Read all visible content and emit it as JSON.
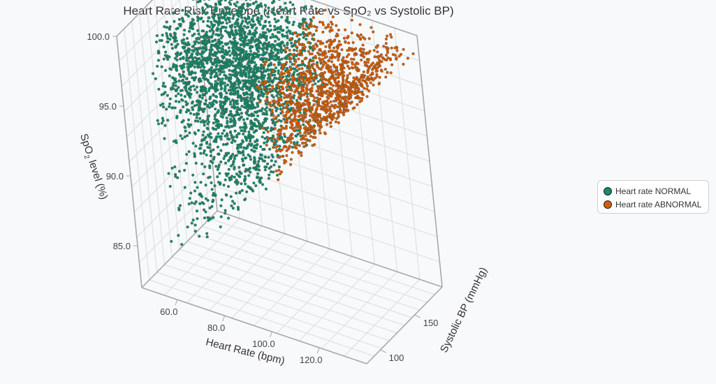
{
  "chart_data": {
    "type": "scatter",
    "projection": "3d",
    "title": "Heart Rate Risk Envelope (Heart Rate vs SpO₂ vs Systolic BP)",
    "xlabel": "Heart Rate (bpm)",
    "ylabel": "Systolic BP (mmHg)",
    "zlabel_parts": [
      "SpO",
      "2",
      " level (%)"
    ],
    "x_ticks": [
      "60.0",
      "80.0",
      "100.0",
      "120.0"
    ],
    "y_ticks": [
      "100",
      "150"
    ],
    "z_ticks": [
      "85.0",
      "90.0",
      "95.0",
      "100.0"
    ],
    "xlim": [
      45,
      140
    ],
    "ylim": [
      80,
      190
    ],
    "zlim": [
      82,
      100
    ],
    "hr_threshold": 100,
    "spo2_levels": [
      95,
      96,
      97,
      98,
      99,
      100
    ],
    "legend_position": "right",
    "series": [
      {
        "name": "Heart rate NORMAL",
        "color": "#1b8a6b",
        "hr_range": [
          55,
          100
        ],
        "spo2_range": [
          84,
          100
        ],
        "bp_range": [
          90,
          185
        ]
      },
      {
        "name": "Heart rate ABNORMAL",
        "color": "#d35f0a",
        "hr_range": [
          100,
          140
        ],
        "spo2_range": [
          84,
          100
        ],
        "bp_range": [
          90,
          185
        ]
      }
    ]
  }
}
